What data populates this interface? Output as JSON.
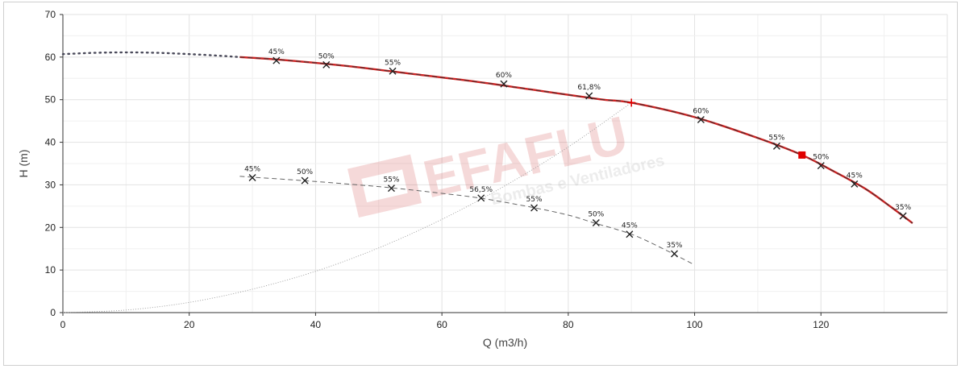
{
  "chart_data": {
    "type": "line",
    "title": "",
    "xlabel": "Q (m3/h)",
    "ylabel": "H (m)",
    "xlim": [
      0,
      140
    ],
    "ylim": [
      0,
      70
    ],
    "x_ticks": [
      "0",
      "20",
      "40",
      "60",
      "80",
      "100",
      "120"
    ],
    "y_ticks": [
      "0",
      "10",
      "20",
      "30",
      "40",
      "50",
      "60",
      "70"
    ],
    "grid": true,
    "colors": {
      "main_curve": "#cc2222",
      "dashed": "#444444",
      "system_curve": "#999999",
      "grid": "#e6e6e6",
      "axis": "#333333",
      "marker": "#e00000"
    },
    "series": [
      {
        "style": "dotted-start",
        "x": [
          0,
          5,
          10,
          15,
          20,
          25,
          28
        ],
        "y": [
          60.7,
          61.0,
          61.1,
          61.0,
          60.7,
          60.3,
          60.0
        ]
      },
      {
        "style": "main-red",
        "x": [
          28,
          35,
          45,
          55,
          65,
          75,
          85,
          90,
          100,
          110,
          117,
          122,
          127,
          131,
          134.5
        ],
        "y": [
          60.0,
          59.3,
          57.9,
          56.1,
          54.3,
          52.2,
          50.1,
          49.3,
          45.9,
          41.0,
          37.0,
          33.2,
          29.1,
          24.9,
          21.0
        ]
      },
      {
        "style": "dashed-lower",
        "x": [
          28,
          30,
          38,
          45,
          52,
          60,
          66,
          74,
          80,
          84,
          90,
          95,
          100
        ],
        "y": [
          32.0,
          31.8,
          31.0,
          30.2,
          29.3,
          28.0,
          26.9,
          24.8,
          22.9,
          21.1,
          18.4,
          15.0,
          11.2
        ]
      },
      {
        "style": "system-curve",
        "x": [
          0,
          10,
          20,
          30,
          40,
          50,
          60,
          70,
          80,
          90
        ],
        "y": [
          0,
          0.6,
          2.4,
          5.5,
          9.7,
          15.2,
          21.9,
          29.8,
          38.9,
          49.3
        ]
      }
    ],
    "efficiency_points_main": [
      {
        "x": 33.8,
        "y": 59.2,
        "label": "45%"
      },
      {
        "x": 41.7,
        "y": 58.2,
        "label": "50%"
      },
      {
        "x": 52.2,
        "y": 56.7,
        "label": "55%"
      },
      {
        "x": 69.8,
        "y": 53.7,
        "label": "60%"
      },
      {
        "x": 83.3,
        "y": 50.9,
        "label": "61,8%"
      },
      {
        "x": 101.0,
        "y": 45.3,
        "label": "60%"
      },
      {
        "x": 113.0,
        "y": 39.1,
        "label": "55%"
      },
      {
        "x": 120.0,
        "y": 34.5,
        "label": "50%"
      },
      {
        "x": 125.3,
        "y": 30.2,
        "label": "45%"
      },
      {
        "x": 133.0,
        "y": 22.7,
        "label": "35%"
      }
    ],
    "efficiency_points_lower": [
      {
        "x": 30.0,
        "y": 31.7,
        "label": "45%"
      },
      {
        "x": 38.3,
        "y": 31.0,
        "label": "50%"
      },
      {
        "x": 52.0,
        "y": 29.2,
        "label": "55%"
      },
      {
        "x": 66.2,
        "y": 26.9,
        "label": "56,5%"
      },
      {
        "x": 74.6,
        "y": 24.6,
        "label": "55%"
      },
      {
        "x": 84.4,
        "y": 21.1,
        "label": "50%"
      },
      {
        "x": 89.7,
        "y": 18.4,
        "label": "45%"
      },
      {
        "x": 96.8,
        "y": 13.8,
        "label": "35%"
      }
    ],
    "operating_point": {
      "x": 90.0,
      "y": 49.3
    },
    "red_marker": {
      "x": 117.0,
      "y": 37.0
    }
  },
  "watermark": {
    "brand": "EFAFLU",
    "tagline": "Bombas e Ventiladores"
  }
}
